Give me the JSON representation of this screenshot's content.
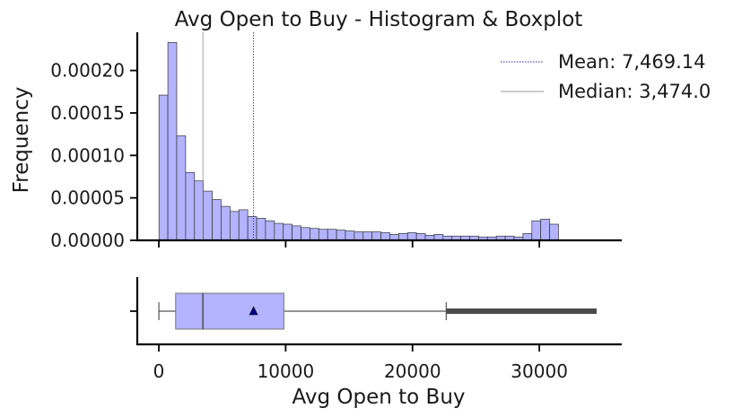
{
  "chart_data": [
    {
      "type": "bar",
      "subtype": "histogram",
      "title": "Avg Open to Buy - Histogram & Boxplot",
      "ylabel": "Frequency",
      "xlim": [
        -1700,
        36500
      ],
      "ylim": [
        0,
        0.000245
      ],
      "bin_start": 11,
      "bin_width": 700,
      "values": [
        0.000171,
        0.000233,
        0.000123,
        8e-05,
        7e-05,
        5.8e-05,
        4.8e-05,
        4e-05,
        3.4e-05,
        3.6e-05,
        2.8e-05,
        2.6e-05,
        2.3e-05,
        2e-05,
        1.9e-05,
        1.7e-05,
        1.5e-05,
        1.4e-05,
        1.3e-05,
        1.3e-05,
        1.2e-05,
        1.1e-05,
        1e-05,
        1e-05,
        1e-05,
        9e-06,
        7e-06,
        8e-06,
        9e-06,
        8e-06,
        6e-06,
        7e-06,
        5e-06,
        5e-06,
        5e-06,
        5e-06,
        4e-06,
        4e-06,
        5e-06,
        5e-06,
        4e-06,
        8e-06,
        2.3e-05,
        2.5e-05,
        1.9e-05
      ],
      "yticks": [
        "0.00000",
        "0.00005",
        "0.00010",
        "0.00015",
        "0.00020"
      ],
      "ytick_values": [
        0,
        5e-05,
        0.0001,
        0.00015,
        0.0002
      ],
      "lines": [
        {
          "label": "Mean: 7,469.14",
          "x": 7469.14,
          "style": "dotted",
          "color": "#2a2aa0"
        },
        {
          "label": "Median: 3,474.0",
          "x": 3474,
          "style": "solid",
          "color": "#9a9a9a"
        }
      ],
      "legend_position": "top-right",
      "bar_color": "#b3b3ff",
      "edge_color": "#333333"
    },
    {
      "type": "boxplot",
      "xlabel": "Avg Open to Buy",
      "xticks": [
        "0",
        "10000",
        "20000",
        "30000"
      ],
      "xtick_values": [
        0,
        10000,
        20000,
        30000
      ],
      "min": 3,
      "q1": 1324,
      "median": 3474,
      "q3": 9859,
      "mean": 7469.14,
      "whisker_high": 22660,
      "outliers_from": 22660,
      "outliers_to": 34516,
      "box_color": "#b3b3ff",
      "mean_marker_color": "#00008b"
    }
  ]
}
